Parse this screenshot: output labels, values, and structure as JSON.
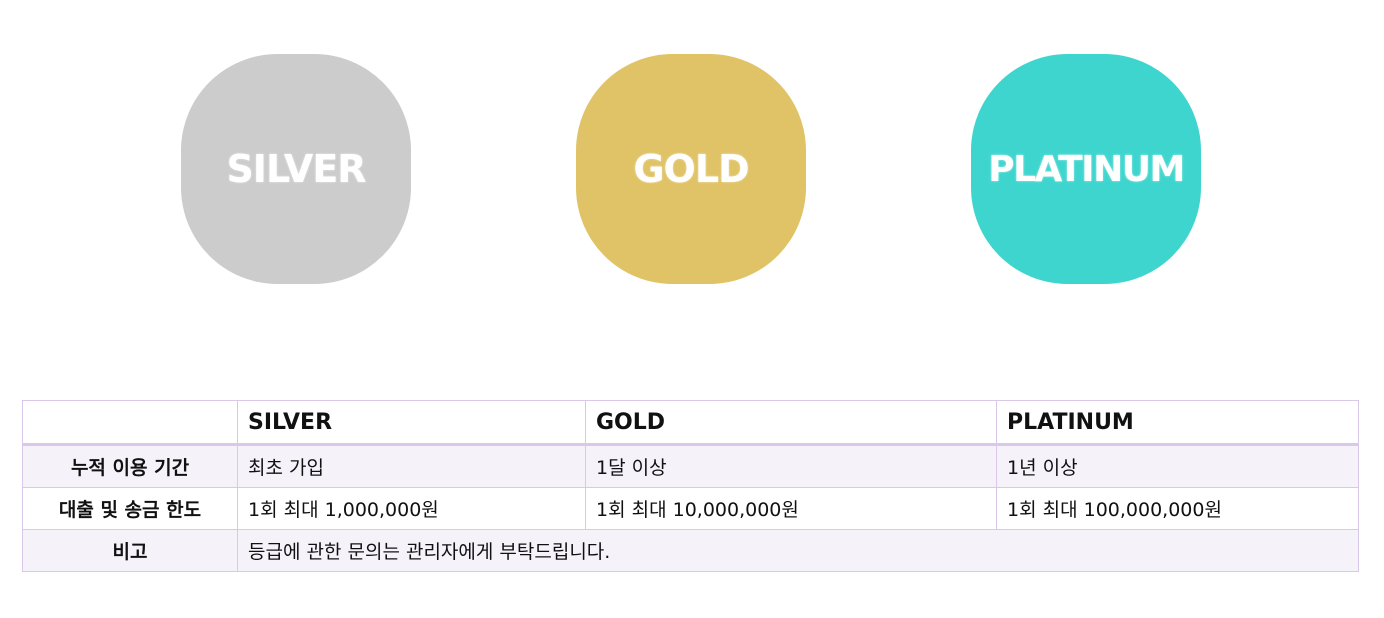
{
  "badges": [
    {
      "label": "SILVER",
      "color": "#cccccc"
    },
    {
      "label": "GOLD",
      "color": "#e0c366"
    },
    {
      "label": "PLATINUM",
      "color": "#3fd5cf"
    }
  ],
  "table": {
    "headers": [
      "",
      "SILVER",
      "GOLD",
      "PLATINUM"
    ],
    "rows": [
      {
        "label": "누적 이용 기간",
        "values": [
          "최초 가입",
          "1달 이상",
          "1년 이상"
        ]
      },
      {
        "label": "대출 및 송금 한도",
        "values": [
          "1회 최대 1,000,000원",
          "1회 최대 10,000,000원",
          "1회 최대 100,000,000원"
        ]
      },
      {
        "label": "비고",
        "note": "등급에 관한 문의는 관리자에게 부탁드립니다."
      }
    ]
  },
  "colors": {
    "border": "#d9c8ea",
    "row_tint": "#f6f2fa"
  }
}
